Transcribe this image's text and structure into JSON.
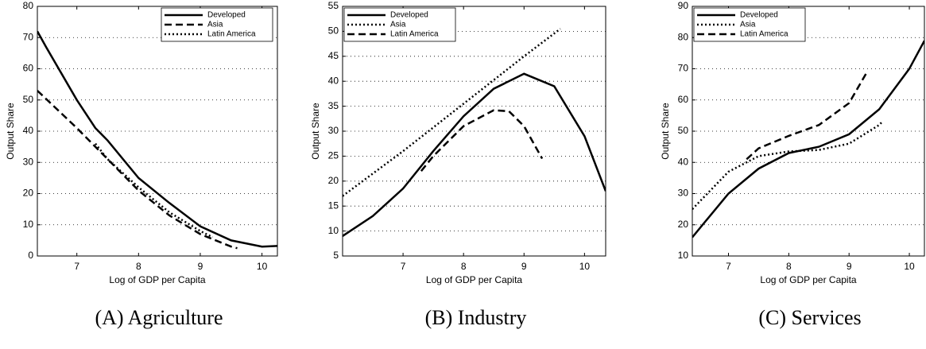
{
  "chart_data": [
    {
      "type": "line",
      "title": "(A) Agriculture",
      "x_label": "Log of GDP per Capita",
      "y_label": "Output Share",
      "xlim": [
        6.36,
        10.25
      ],
      "ylim": [
        0,
        80
      ],
      "xticks": [
        7,
        8,
        9,
        10
      ],
      "yticks": [
        0,
        10,
        20,
        30,
        40,
        50,
        60,
        70,
        80
      ],
      "grid": true,
      "legend": "upper right",
      "series": [
        {
          "name": "Developed",
          "color": "#000000",
          "linestyle": "solid",
          "x": [
            6.36,
            6.5,
            7,
            7.3,
            7.5,
            8,
            8.5,
            9,
            9.5,
            10,
            10.25
          ],
          "values": [
            72,
            67,
            50,
            41,
            37,
            25,
            17,
            9.5,
            5,
            3,
            3.2
          ]
        },
        {
          "name": "Asia",
          "color": "#000000",
          "linestyle": "dashed",
          "x": [
            6.36,
            7,
            7.5,
            8,
            8.5,
            9,
            9.5,
            9.6
          ],
          "values": [
            53,
            41,
            31,
            21,
            13,
            7,
            3,
            2.5
          ]
        },
        {
          "name": "Latin America",
          "color": "#000000",
          "linestyle": "dotted",
          "x": [
            7.3,
            7.5,
            8,
            8.5,
            9,
            9.2
          ],
          "values": [
            36,
            31,
            22,
            14,
            8,
            6
          ]
        }
      ]
    },
    {
      "type": "line",
      "title": "(B) Industry",
      "x_label": "Log of GDP per Capita",
      "y_label": "Output Share",
      "xlim": [
        6.0,
        10.35
      ],
      "ylim": [
        5,
        55
      ],
      "xticks": [
        7,
        8,
        9,
        10
      ],
      "yticks": [
        5,
        10,
        15,
        20,
        25,
        30,
        35,
        40,
        45,
        50,
        55
      ],
      "grid": true,
      "legend": "upper left",
      "series": [
        {
          "name": "Developed",
          "color": "#000000",
          "linestyle": "solid",
          "x": [
            6.0,
            6.5,
            7,
            7.5,
            8,
            8.5,
            9,
            9.5,
            10,
            10.35
          ],
          "values": [
            9,
            13,
            18.5,
            26,
            33,
            38.5,
            41.5,
            39,
            29,
            18
          ]
        },
        {
          "name": "Asia",
          "color": "#000000",
          "linestyle": "dotted",
          "x": [
            6.0,
            7,
            8,
            9,
            9.6
          ],
          "values": [
            17,
            26,
            35.5,
            45,
            50.5
          ]
        },
        {
          "name": "Latin America",
          "color": "#000000",
          "linestyle": "dashed",
          "x": [
            7.3,
            7.5,
            8,
            8.5,
            8.75,
            9,
            9.3
          ],
          "values": [
            22,
            25,
            31,
            34.2,
            34,
            31,
            24.5
          ]
        }
      ]
    },
    {
      "type": "line",
      "title": "(C) Services",
      "x_label": "Log of GDP per Capita",
      "y_label": "Output Share",
      "xlim": [
        6.4,
        10.25
      ],
      "ylim": [
        10,
        90
      ],
      "xticks": [
        7,
        8,
        9,
        10
      ],
      "yticks": [
        10,
        20,
        30,
        40,
        50,
        60,
        70,
        80,
        90
      ],
      "grid": true,
      "legend": "upper left",
      "series": [
        {
          "name": "Developed",
          "color": "#000000",
          "linestyle": "solid",
          "x": [
            6.4,
            7,
            7.5,
            8,
            8.5,
            9,
            9.5,
            10,
            10.25
          ],
          "values": [
            16,
            30,
            38,
            43,
            45,
            49,
            57,
            70,
            79
          ]
        },
        {
          "name": "Asia",
          "color": "#000000",
          "linestyle": "dotted",
          "x": [
            6.4,
            7,
            7.5,
            8,
            8.5,
            9,
            9.5,
            9.55
          ],
          "values": [
            25,
            37,
            42,
            43.5,
            44,
            46,
            52,
            53
          ]
        },
        {
          "name": "Latin America",
          "color": "#000000",
          "linestyle": "dashed",
          "x": [
            7.3,
            7.5,
            8,
            8.5,
            9,
            9.3
          ],
          "values": [
            41,
            44.5,
            48.5,
            52,
            59,
            69
          ]
        }
      ]
    }
  ]
}
